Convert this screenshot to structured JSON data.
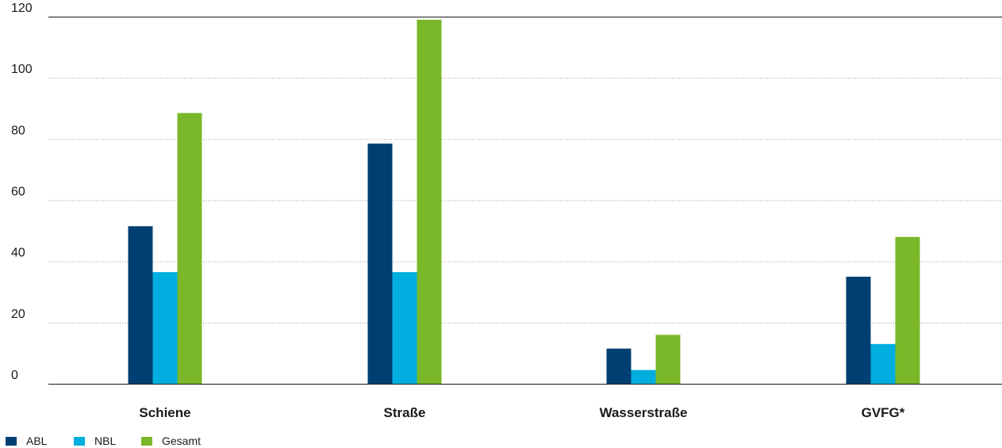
{
  "chart_data": {
    "type": "bar",
    "categories": [
      "Schiene",
      "Straße",
      "Wasserstraße",
      "GVFG*"
    ],
    "series": [
      {
        "name": "ABL",
        "color": "#003f72",
        "values": [
          51.5,
          78.5,
          11.5,
          35
        ]
      },
      {
        "name": "NBL",
        "color": "#00aedf",
        "values": [
          36.5,
          36.5,
          4.5,
          13
        ]
      },
      {
        "name": "Gesamt",
        "color": "#7ab82a",
        "values": [
          88.5,
          119,
          16,
          48
        ]
      }
    ],
    "ylim": [
      0,
      120
    ],
    "yticks": [
      0,
      20,
      40,
      60,
      80,
      100,
      120
    ],
    "grid": true,
    "legend_position": "bottom-left"
  }
}
